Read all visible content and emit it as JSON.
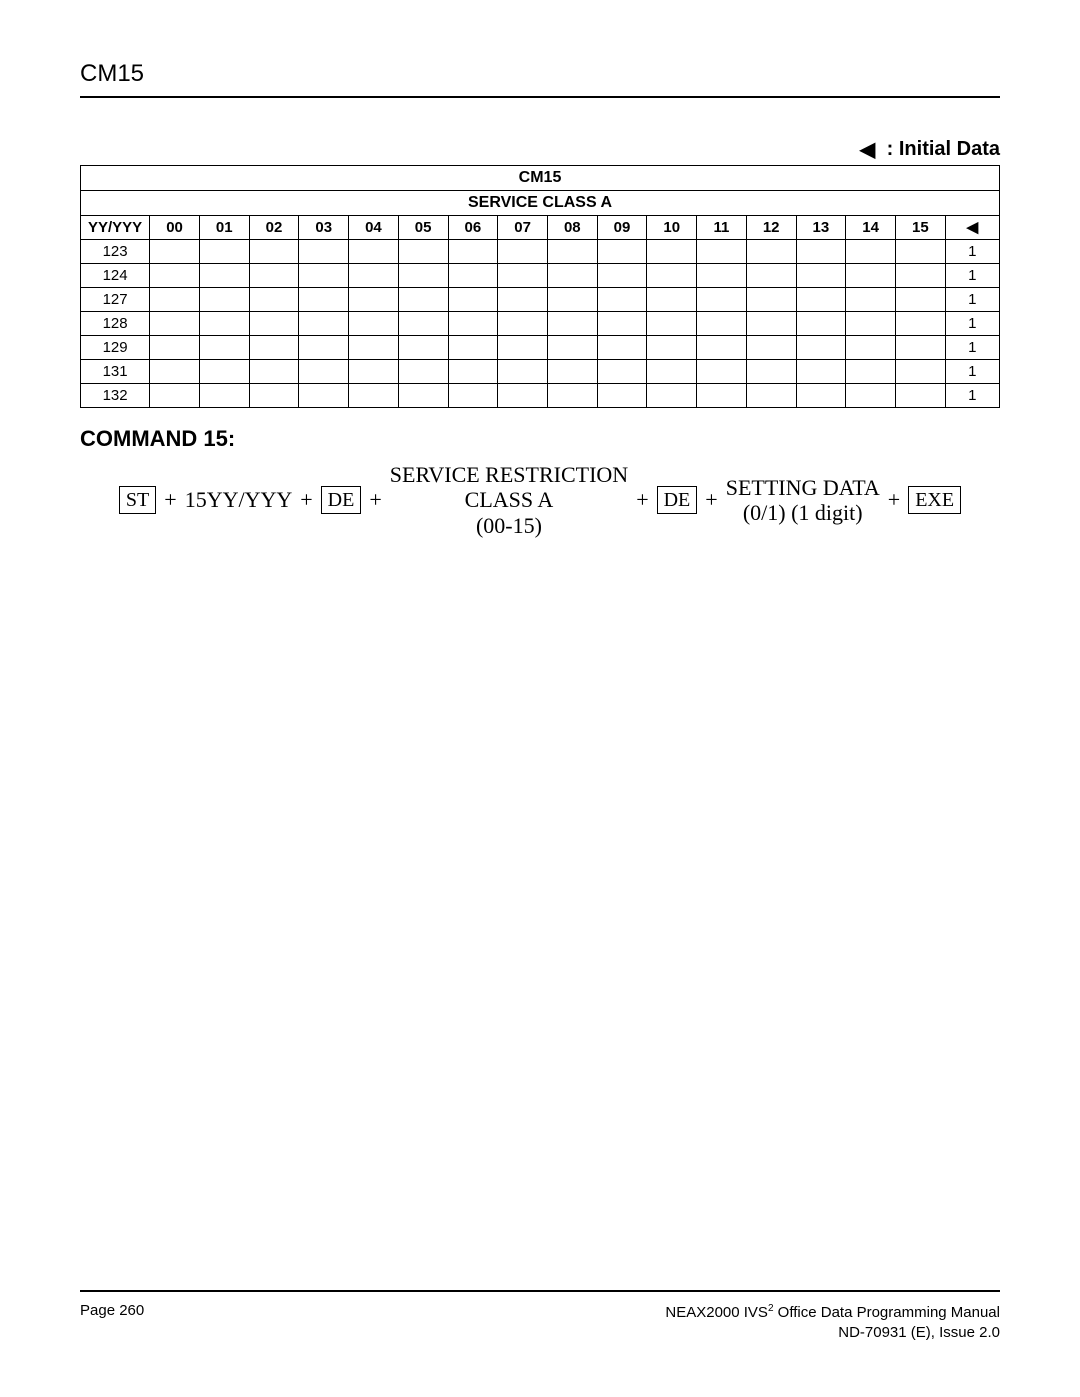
{
  "header": {
    "title": "CM15"
  },
  "legend": {
    "symbol": "◀",
    "label": ": Initial Data"
  },
  "table": {
    "title": "CM15",
    "subtitle": "SERVICE CLASS A",
    "first_col_header": "YY/YYY",
    "num_headers": [
      "00",
      "01",
      "02",
      "03",
      "04",
      "05",
      "06",
      "07",
      "08",
      "09",
      "10",
      "11",
      "12",
      "13",
      "14",
      "15"
    ],
    "last_col_header": "◀",
    "rows": [
      {
        "yy": "123",
        "vals": [
          "",
          "",
          "",
          "",
          "",
          "",
          "",
          "",
          "",
          "",
          "",
          "",
          "",
          "",
          "",
          ""
        ],
        "init": "1"
      },
      {
        "yy": "124",
        "vals": [
          "",
          "",
          "",
          "",
          "",
          "",
          "",
          "",
          "",
          "",
          "",
          "",
          "",
          "",
          "",
          ""
        ],
        "init": "1"
      },
      {
        "yy": "127",
        "vals": [
          "",
          "",
          "",
          "",
          "",
          "",
          "",
          "",
          "",
          "",
          "",
          "",
          "",
          "",
          "",
          ""
        ],
        "init": "1"
      },
      {
        "yy": "128",
        "vals": [
          "",
          "",
          "",
          "",
          "",
          "",
          "",
          "",
          "",
          "",
          "",
          "",
          "",
          "",
          "",
          ""
        ],
        "init": "1"
      },
      {
        "yy": "129",
        "vals": [
          "",
          "",
          "",
          "",
          "",
          "",
          "",
          "",
          "",
          "",
          "",
          "",
          "",
          "",
          "",
          ""
        ],
        "init": "1"
      },
      {
        "yy": "131",
        "vals": [
          "",
          "",
          "",
          "",
          "",
          "",
          "",
          "",
          "",
          "",
          "",
          "",
          "",
          "",
          "",
          ""
        ],
        "init": "1"
      },
      {
        "yy": "132",
        "vals": [
          "",
          "",
          "",
          "",
          "",
          "",
          "",
          "",
          "",
          "",
          "",
          "",
          "",
          "",
          "",
          ""
        ],
        "init": "1"
      }
    ]
  },
  "command": {
    "heading": "COMMAND 15:",
    "seq": {
      "st": "ST",
      "plus": "+",
      "param1": "15YY/YYY",
      "de": "DE",
      "block1": {
        "l1": "SERVICE RESTRICTION",
        "l2": "CLASS A",
        "l3": "(00-15)"
      },
      "block2": {
        "l1": "SETTING DATA",
        "l2": "(0/1) (1 digit)"
      },
      "exe": "EXE"
    }
  },
  "footer": {
    "page": "Page 260",
    "manual_prefix": "NEAX2000 IVS",
    "manual_sup": "2",
    "manual_suffix": " Office Data Programming Manual",
    "doc": "ND-70931 (E), Issue 2.0"
  }
}
